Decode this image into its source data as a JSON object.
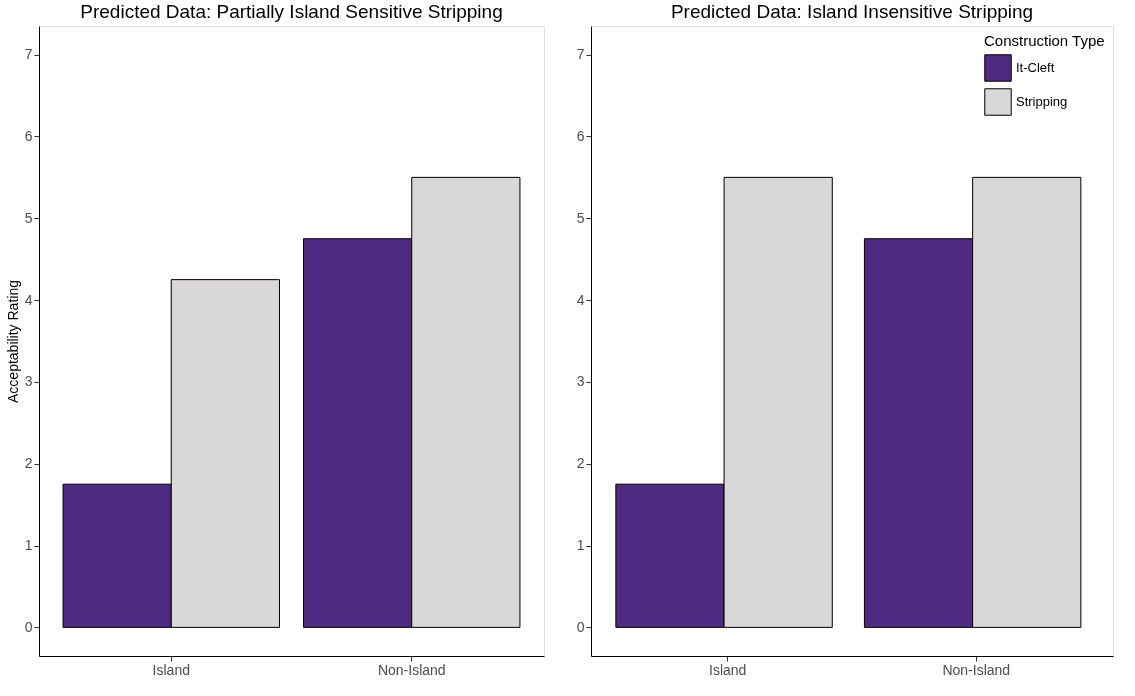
{
  "chart_data": [
    {
      "type": "bar",
      "title": "Predicted Data: Partially Island Sensitive Stripping",
      "ylabel": "Acceptability Rating",
      "categories": [
        "Island",
        "Non-Island"
      ],
      "series": [
        {
          "color": "#4f2a82",
          "values": [
            1.75,
            4.75
          ]
        },
        {
          "color": "#d9d7d8",
          "values": [
            4.25,
            5.5
          ]
        }
      ],
      "ylim": [
        -0.35,
        7.35
      ],
      "yticks": [
        0,
        1,
        2,
        3,
        4,
        5,
        6,
        7
      ],
      "grid": false,
      "legend": false
    },
    {
      "type": "bar",
      "title": "Predicted Data: Island Insensitive Stripping",
      "legend_title": "Construction Type",
      "categories": [
        "Island",
        "Non-Island"
      ],
      "series": [
        {
          "name": "It-Cleft",
          "color": "#4f2a82",
          "values": [
            1.75,
            4.75
          ]
        },
        {
          "name": "Stripping",
          "color": "#d9d7d8",
          "values": [
            5.5,
            5.5
          ]
        }
      ],
      "ylim": [
        -0.35,
        7.35
      ],
      "yticks": [
        0,
        1,
        2,
        3,
        4,
        5,
        6,
        7
      ],
      "grid": false,
      "legend": "top right"
    }
  ]
}
